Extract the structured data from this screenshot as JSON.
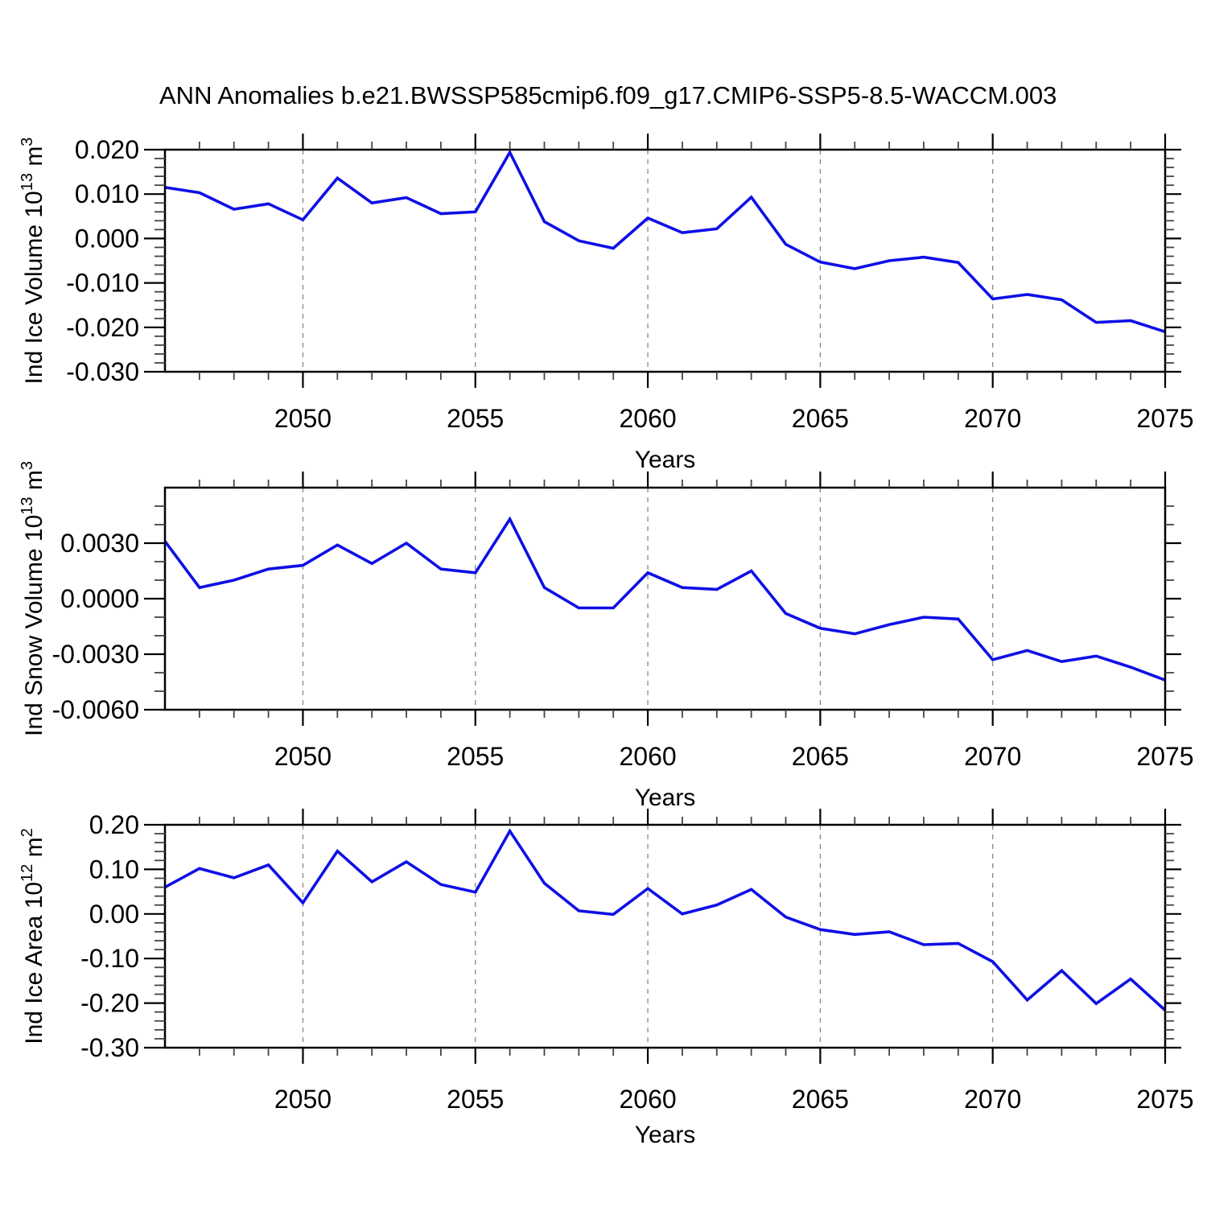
{
  "title": "ANN Anomalies b.e21.BWSSP585cmip6.f09_g17.CMIP6-SSP5-8.5-WACCM.003",
  "xlabel": "Years",
  "colors": {
    "line": "#0f0fe6",
    "frame": "#000000",
    "grid": "#888888",
    "minor_tick": "#444444",
    "text": "#000000"
  },
  "x_years": [
    2046,
    2047,
    2048,
    2049,
    2050,
    2051,
    2052,
    2053,
    2054,
    2055,
    2056,
    2057,
    2058,
    2059,
    2060,
    2061,
    2062,
    2063,
    2064,
    2065,
    2066,
    2067,
    2068,
    2069,
    2070,
    2071,
    2072,
    2073,
    2074,
    2075
  ],
  "x_major_ticks": [
    2050,
    2055,
    2060,
    2065,
    2070,
    2075
  ],
  "x_major_labels": [
    "2050",
    "2055",
    "2060",
    "2065",
    "2070",
    "2075"
  ],
  "x_gridline_years": [
    2050,
    2055,
    2060,
    2065,
    2070
  ],
  "chart_data": [
    {
      "type": "line",
      "name": "ind-ice-volume",
      "title": "ANN Anomalies b.e21.BWSSP585cmip6.f09_g17.CMIP6-SSP5-8.5-WACCM.003",
      "ylabel": "Ind Ice Volume 10^13 m^3",
      "ylabel_parts": [
        {
          "t": "Ind Ice Volume 10",
          "sup": false
        },
        {
          "t": "13",
          "sup": true
        },
        {
          "t": " m",
          "sup": false
        },
        {
          "t": "3",
          "sup": true
        }
      ],
      "xlabel": "Years",
      "ylim": [
        -0.03,
        0.02
      ],
      "yminor_step": 0.002,
      "yticks": [
        {
          "v": 0.02,
          "label": "0.020"
        },
        {
          "v": 0.01,
          "label": "0.010"
        },
        {
          "v": 0.0,
          "label": "0.000"
        },
        {
          "v": -0.01,
          "label": "-0.010"
        },
        {
          "v": -0.02,
          "label": "-0.020"
        },
        {
          "v": -0.03,
          "label": "-0.030"
        }
      ],
      "values": [
        0.0115,
        0.0103,
        0.0066,
        0.0078,
        0.0042,
        0.0136,
        0.008,
        0.0092,
        0.0056,
        0.006,
        0.0194,
        0.0038,
        -0.0005,
        -0.0022,
        0.0046,
        0.0013,
        0.0022,
        0.0093,
        -0.0013,
        -0.0053,
        -0.0068,
        -0.005,
        -0.0042,
        -0.0054,
        -0.0136,
        -0.0126,
        -0.0138,
        -0.0189,
        -0.0185,
        -0.021
      ]
    },
    {
      "type": "line",
      "name": "ind-snow-volume",
      "ylabel": "Ind Snow Volume 10^13 m^3",
      "ylabel_parts": [
        {
          "t": "Ind Snow Volume 10",
          "sup": false
        },
        {
          "t": "13",
          "sup": true
        },
        {
          "t": " m",
          "sup": false
        },
        {
          "t": "3",
          "sup": true
        }
      ],
      "xlabel": "Years",
      "ylim": [
        -0.006,
        0.006
      ],
      "yminor_step": 0.001,
      "yticks": [
        {
          "v": 0.003,
          "label": "0.0030"
        },
        {
          "v": 0.0,
          "label": "0.0000"
        },
        {
          "v": -0.003,
          "label": "-0.0030"
        },
        {
          "v": -0.006,
          "label": "-0.0060"
        }
      ],
      "values": [
        0.0031,
        0.0006,
        0.001,
        0.0016,
        0.0018,
        0.0029,
        0.0019,
        0.003,
        0.0016,
        0.0014,
        0.0043,
        0.0006,
        -0.0005,
        -0.0005,
        0.0014,
        0.0006,
        0.0005,
        0.0015,
        -0.0008,
        -0.0016,
        -0.0019,
        -0.0014,
        -0.001,
        -0.0011,
        -0.0033,
        -0.0028,
        -0.0034,
        -0.0031,
        -0.0037,
        -0.0044
      ]
    },
    {
      "type": "line",
      "name": "ind-ice-area",
      "ylabel": "Ind Ice Area 10^12 m^2",
      "ylabel_parts": [
        {
          "t": "Ind Ice Area 10",
          "sup": false
        },
        {
          "t": "12",
          "sup": true
        },
        {
          "t": " m",
          "sup": false
        },
        {
          "t": "2",
          "sup": true
        }
      ],
      "xlabel": "Years",
      "ylim": [
        -0.3,
        0.2
      ],
      "yminor_step": 0.02,
      "yticks": [
        {
          "v": 0.2,
          "label": "0.20"
        },
        {
          "v": 0.1,
          "label": "0.10"
        },
        {
          "v": 0.0,
          "label": "0.00"
        },
        {
          "v": -0.1,
          "label": "-0.10"
        },
        {
          "v": -0.2,
          "label": "-0.20"
        },
        {
          "v": -0.3,
          "label": "-0.30"
        }
      ],
      "values": [
        0.06,
        0.102,
        0.081,
        0.11,
        0.025,
        0.141,
        0.072,
        0.117,
        0.066,
        0.049,
        0.186,
        0.069,
        0.007,
        -0.001,
        0.057,
        0.0,
        0.02,
        0.055,
        -0.007,
        -0.035,
        -0.046,
        -0.04,
        -0.069,
        -0.066,
        -0.107,
        -0.193,
        -0.127,
        -0.201,
        -0.146,
        -0.216
      ]
    }
  ]
}
